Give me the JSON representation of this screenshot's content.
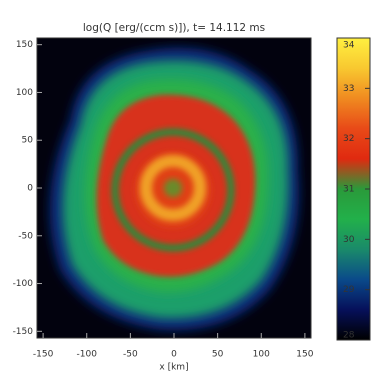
{
  "chart_data": {
    "type": "heatmap",
    "title": "log(Q [erg/(ccm s)]), t= 14.112 ms",
    "x_label": "x [km]",
    "xlim": [
      -157,
      157
    ],
    "xticks": [
      -150,
      -100,
      -50,
      0,
      50,
      100,
      150
    ],
    "ylim": [
      -157,
      157
    ],
    "yticks": [
      -150,
      -100,
      -50,
      0,
      50,
      100,
      150
    ],
    "zlim": [
      28,
      34
    ],
    "zticks": [
      28,
      29,
      30,
      31,
      32,
      33,
      34
    ],
    "colormap": [
      "#000000",
      "#06105a",
      "#0a4a8a",
      "#1a8a6a",
      "#22b04a",
      "#2a9a3a",
      "#e02a10",
      "#e84a18",
      "#f08a20",
      "#f8c830",
      "#fff040"
    ]
  }
}
